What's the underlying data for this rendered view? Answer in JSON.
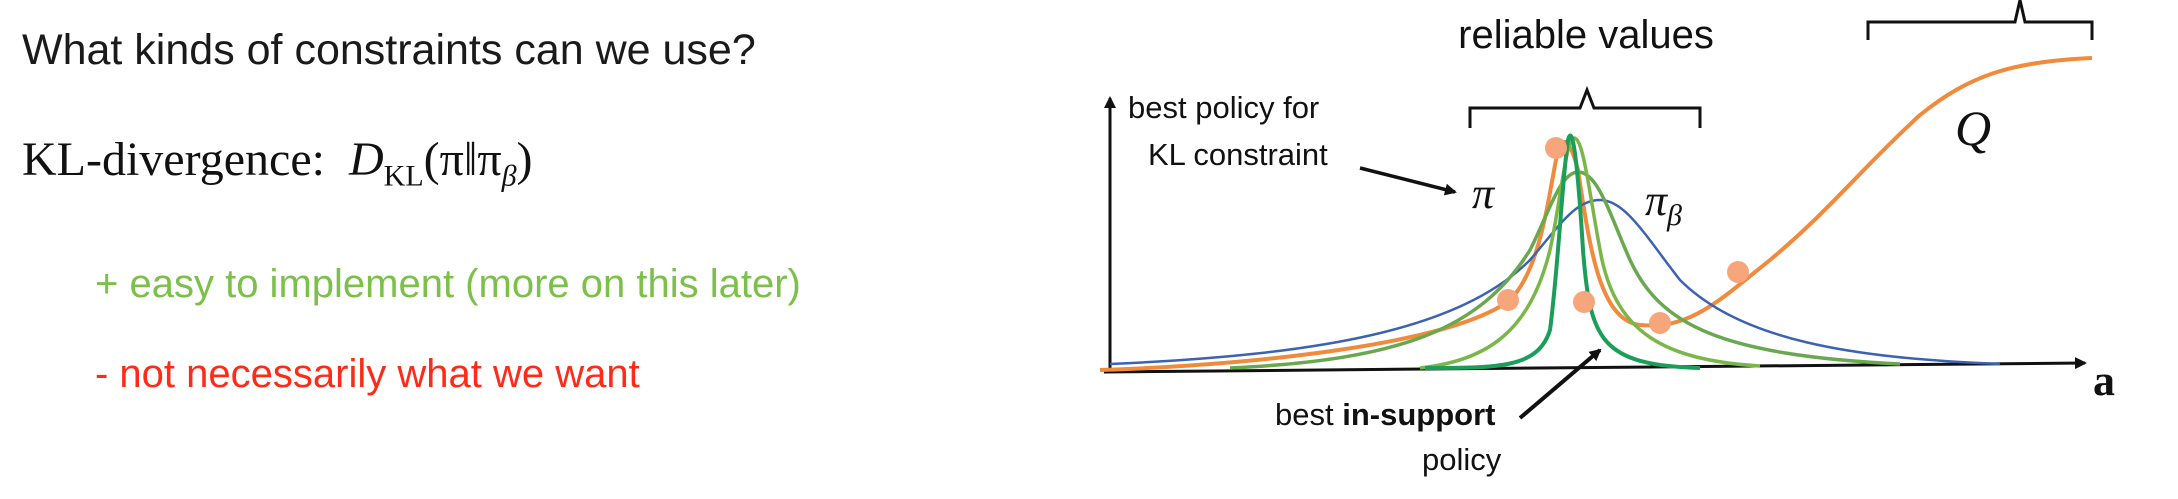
{
  "slide": {
    "question": "What kinds of constraints can we use?",
    "kl": {
      "label": "KL-divergence:",
      "formula_D": "D",
      "formula_sub": "KL",
      "formula_open": "(π‖π",
      "formula_beta": "β",
      "formula_close": ")"
    },
    "pro": {
      "text": "+ easy to implement (more on this later)",
      "color": "#7cc04a"
    },
    "con": {
      "text": "- not necessarily what we want",
      "color": "#ff2a17"
    }
  },
  "diagram": {
    "reliable_label": "reliable values",
    "best_kl_line1": "best policy for",
    "best_kl_line2": "KL constraint",
    "pi_label": "π",
    "pi_beta_label": "π",
    "pi_beta_sub": "β",
    "q_label": "Q",
    "axis_label": "a",
    "best_support_prefix": "best ",
    "best_support_bold": "in-support",
    "best_support_line2": "policy",
    "colors": {
      "q_curve": "#f08a3c",
      "q_points": "#f7a57a",
      "pi_beta_curve": "#3c62b3",
      "kl_pi_curve": "#6aa84f",
      "mid_curve": "#7ab648",
      "in_support_curve": "#1a9e5a",
      "axes": "#111111"
    }
  }
}
